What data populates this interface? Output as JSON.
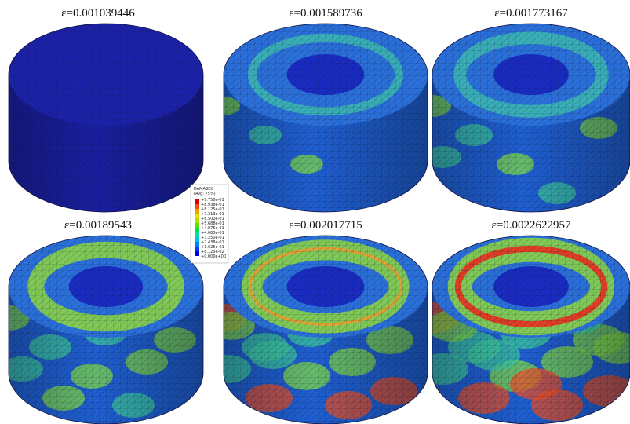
{
  "panels": [
    {
      "label": "ε=0.001039446"
    },
    {
      "label": "ε=0.001589736"
    },
    {
      "label": "ε=0.001773167"
    },
    {
      "label": "ε=0.00189543"
    },
    {
      "label": "ε=0.002017715"
    },
    {
      "label": "ε=0.0022622957"
    }
  ],
  "legend": {
    "title": "DAMAGEC",
    "subtitle": "(Avg: 75%)",
    "labels": [
      "+9.750e-01",
      "+8.938e-01",
      "+8.125e-01",
      "+7.313e-01",
      "+6.500e-01",
      "+5.688e-01",
      "+4.875e-01",
      "+4.063e-01",
      "+3.250e-01",
      "+2.438e-01",
      "+1.625e-01",
      "+8.125e-02",
      "+0.000e+00"
    ]
  }
}
